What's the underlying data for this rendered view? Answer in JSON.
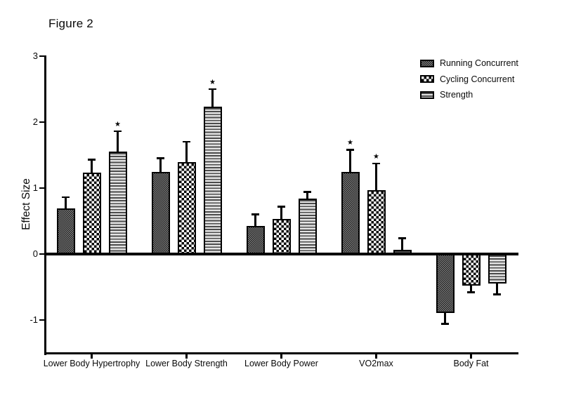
{
  "figure_label": "Figure 2",
  "colors": {
    "background": "#ffffff",
    "axis": "#000000",
    "bar_outline": "#000000",
    "significance_marker_color": "#000000"
  },
  "chart_data": {
    "type": "bar",
    "title": "Figure 2",
    "xlabel": "",
    "ylabel": "Effect Size",
    "ylim": [
      -1.5,
      3
    ],
    "yticks": [
      3,
      2,
      1,
      0,
      -1
    ],
    "grid": false,
    "legend_position": "top-right",
    "significance_marker": "★",
    "categories": [
      "Lower Body Hypertrophy",
      "Lower Body Strength",
      "Lower Body Power",
      "VO2max",
      "Body Fat"
    ],
    "series": [
      {
        "name": "Running Concurrent",
        "pattern": "fine-checker",
        "values": [
          0.69,
          1.25,
          0.43,
          1.25,
          -0.9
        ],
        "errors": [
          0.17,
          0.2,
          0.17,
          0.33,
          0.16
        ],
        "significant": [
          false,
          false,
          false,
          true,
          false
        ]
      },
      {
        "name": "Cycling Concurrent",
        "pattern": "checker",
        "values": [
          1.23,
          1.39,
          0.53,
          0.97,
          -0.48
        ],
        "errors": [
          0.2,
          0.31,
          0.19,
          0.4,
          0.1
        ],
        "significant": [
          false,
          false,
          false,
          true,
          false
        ]
      },
      {
        "name": "Strength",
        "pattern": "horizontal-lines",
        "values": [
          1.55,
          2.23,
          0.84,
          0.06,
          -0.45
        ],
        "errors": [
          0.31,
          0.27,
          0.1,
          0.18,
          0.16
        ],
        "significant": [
          true,
          true,
          false,
          false,
          false
        ]
      }
    ]
  }
}
